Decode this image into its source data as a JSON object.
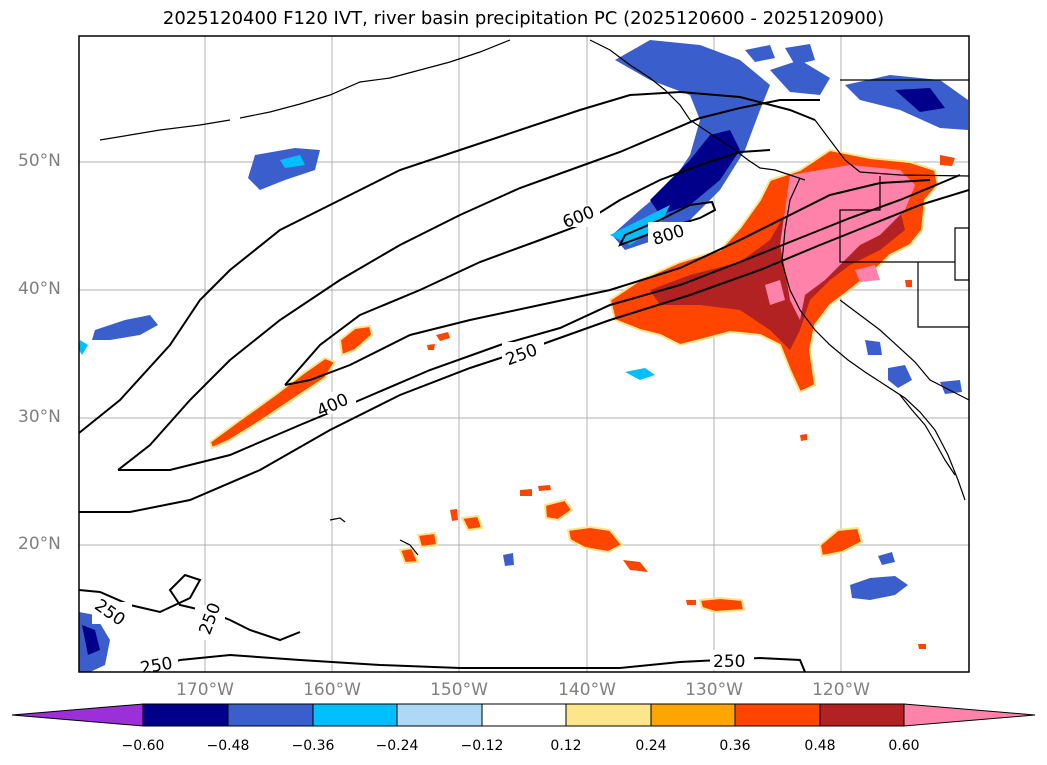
{
  "title": "2025120400 F120 IVT, river basin precipitation PC (2025120600 - 2025120900)",
  "lat_labels": [
    "50°N",
    "40°N",
    "30°N",
    "20°N"
  ],
  "lon_labels": [
    "170°W",
    "160°W",
    "150°W",
    "140°W",
    "130°W",
    "120°W"
  ],
  "ivt_contour_labels": [
    "600",
    "800",
    "400",
    "250",
    "250",
    "250",
    "250",
    "250"
  ],
  "colorbar": {
    "ticks": [
      "−0.60",
      "−0.48",
      "−0.36",
      "−0.24",
      "−0.12",
      "0.12",
      "0.24",
      "0.36",
      "0.48",
      "0.60"
    ],
    "colors": [
      "#9b30d9",
      "#00008b",
      "#3a5fcd",
      "#00bfff",
      "#add8f6",
      "#ffffff",
      "#fde68a",
      "#ffa500",
      "#ff4500",
      "#b22222",
      "#ff82ab"
    ]
  },
  "palette": {
    "gridline": "#b0b0b0",
    "label_gray": "#808080",
    "coast": "#000000"
  }
}
